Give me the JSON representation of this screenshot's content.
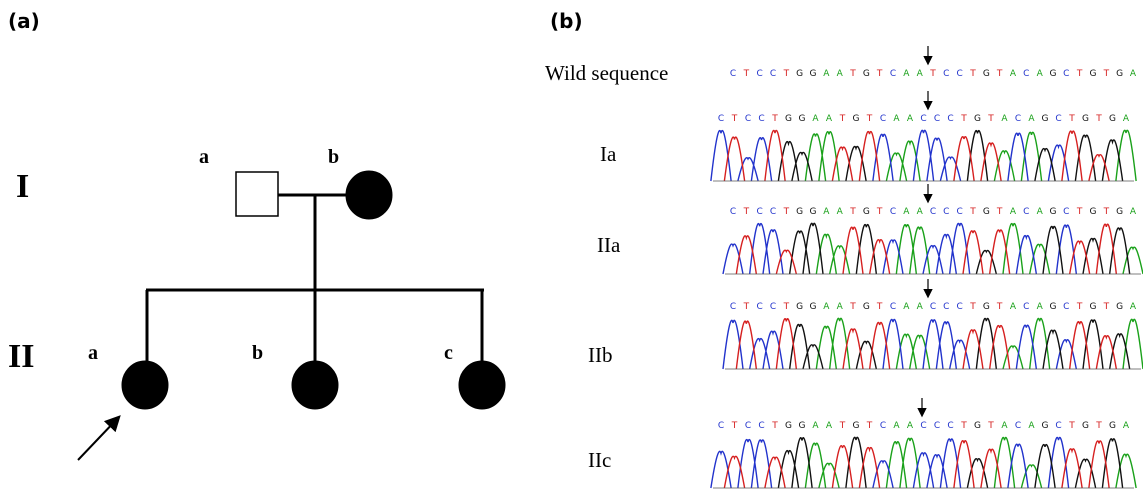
{
  "panel_a": {
    "label": "(a)",
    "generations": [
      "I",
      "II"
    ],
    "gen1": [
      "a",
      "b"
    ],
    "gen2": [
      "a",
      "b",
      "c"
    ]
  },
  "panel_b": {
    "label": "(b)",
    "wild": {
      "label": "Wild sequence",
      "sequence": "CTCCTGGAATGTCAATCCTGTACAGCTGTGA"
    },
    "samples": [
      {
        "label": "Ia",
        "sequence": "CTCCTGGAATGTCAACCCTGTACAGCTGTGA"
      },
      {
        "label": "IIa",
        "sequence": "CTCCTGGAATGTCAACCCTGTACAGCTGTGA"
      },
      {
        "label": "IIb",
        "sequence": "CTCCTGGAATGTCAACCCTGTACAGCTGTGA"
      },
      {
        "label": "IIc",
        "sequence": "CTCCTGGAATGTCAACCCTGTACAGCTGTGA"
      }
    ]
  }
}
